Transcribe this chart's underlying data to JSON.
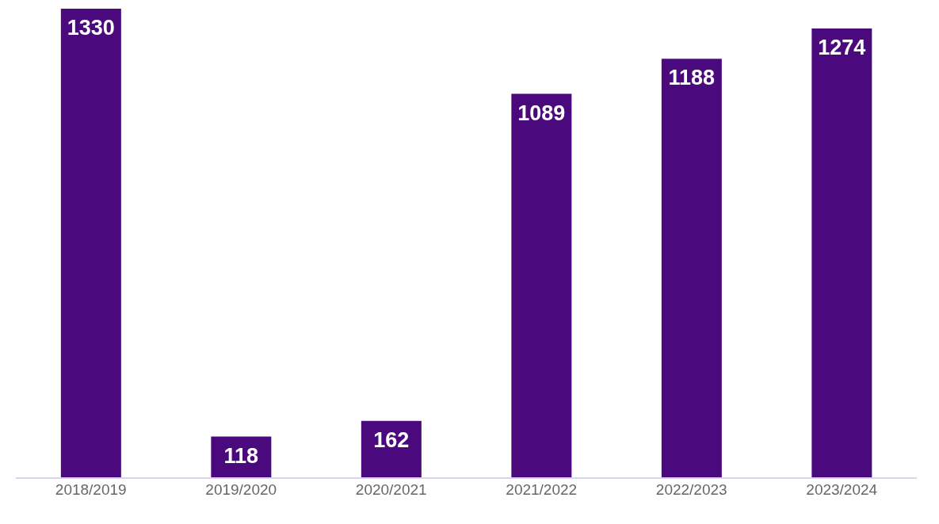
{
  "chart_data": {
    "type": "bar",
    "categories": [
      "2018/2019",
      "2019/2020",
      "2020/2021",
      "2021/2022",
      "2022/2023",
      "2023/2024"
    ],
    "values": [
      1330,
      118,
      162,
      1089,
      1188,
      1274
    ],
    "color": "#4a0a7e",
    "data_labels": true
  }
}
